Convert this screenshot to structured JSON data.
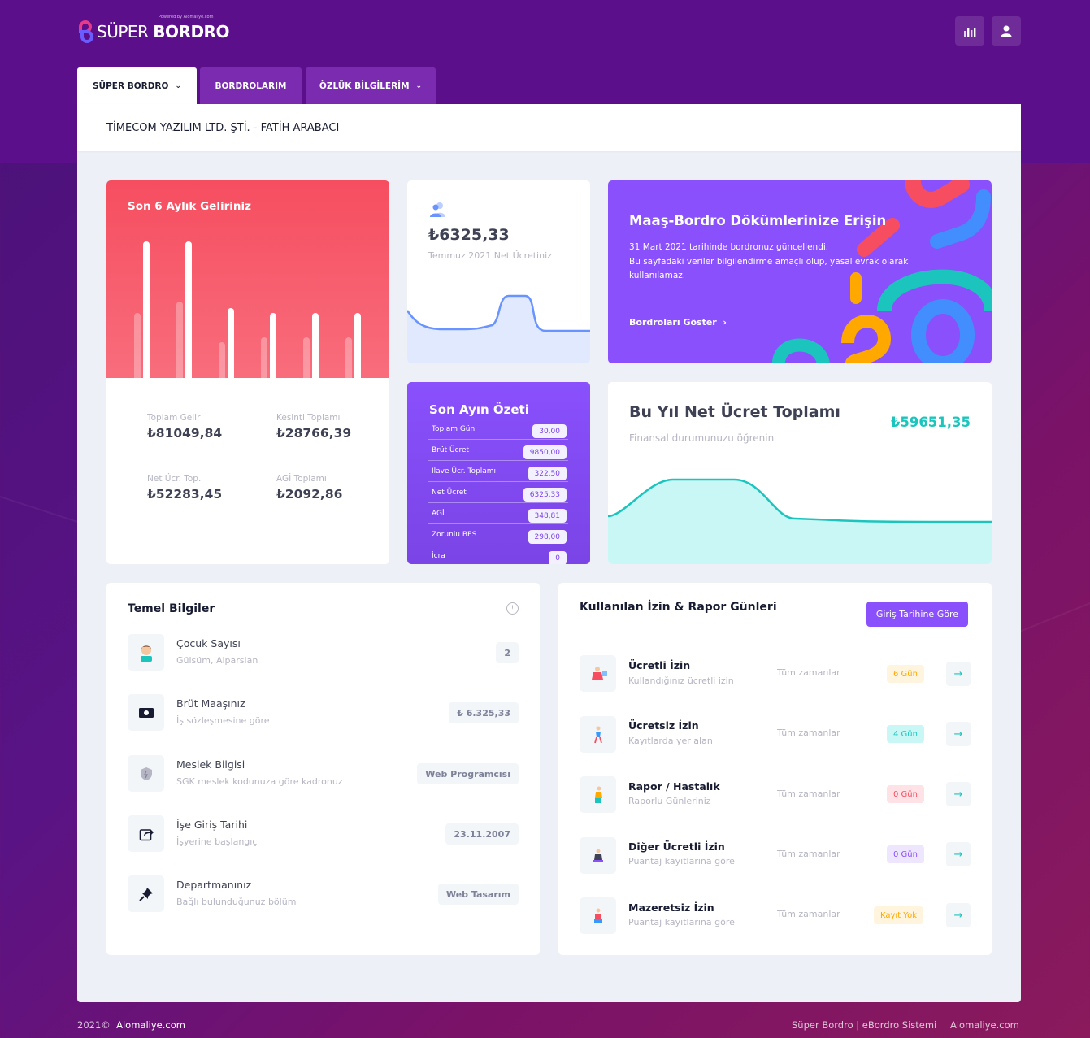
{
  "brand": {
    "name_prefix": "SÜPER",
    "name_bold": "BORDRO",
    "powered": "Powered by Alomaliye.com"
  },
  "header": {
    "stats_icon": "bar-chart-icon",
    "user_icon": "user-icon"
  },
  "tabs": [
    {
      "label": "SÜPER BORDRO"
    },
    {
      "label": "BORDROLARIM"
    },
    {
      "label": "ÖZLÜK BİLGİLERİM"
    }
  ],
  "subheader": {
    "title": "TİMECOM YAZILIM LTD. ŞTİ. - FATİH ARABACI"
  },
  "income": {
    "title": "Son 6 Aylık Geliriniz",
    "stats": [
      {
        "label": "Toplam Gelir",
        "value": "₺81049,84"
      },
      {
        "label": "Kesinti Toplamı",
        "value": "₺28766,39"
      },
      {
        "label": "Net Ücr. Top.",
        "value": "₺52283,45"
      },
      {
        "label": "AGİ Toplamı",
        "value": "₺2092,86"
      }
    ]
  },
  "net_card": {
    "value": "₺6325,33",
    "subtitle": "Temmuz 2021 Net Ücretiniz",
    "icon": "users-icon"
  },
  "banner": {
    "title": "Maaş-Bordro Dökümlerinize Erişin",
    "line1": "31 Mart 2021 tarihinde bordronuz güncellendi.",
    "line2": "Bu sayfadaki veriler bilgilendirme amaçlı olup, yasal evrak olarak kullanılamaz.",
    "link": "Bordroları Göster"
  },
  "summary": {
    "title": "Son Ayın Özeti",
    "rows": [
      {
        "label": "Toplam Gün",
        "value": "30,00"
      },
      {
        "label": "Brüt Ücret",
        "value": "9850,00"
      },
      {
        "label": "İlave Ücr. Toplamı",
        "value": "322,50"
      },
      {
        "label": "Net Ücret",
        "value": "6325,33"
      },
      {
        "label": "AGİ",
        "value": "348,81"
      },
      {
        "label": "Zorunlu BES",
        "value": "298,00"
      },
      {
        "label": "İcra",
        "value": "0"
      }
    ]
  },
  "yearly": {
    "title": "Bu Yıl Net Ücret Toplamı",
    "subtitle": "Finansal durumunuzu öğrenin",
    "value": "₺59651,35"
  },
  "temel": {
    "title": "Temel Bilgiler",
    "items": [
      {
        "title": "Çocuk Sayısı",
        "sub": "Gülsüm, Alparslan",
        "badge": "2",
        "icon": "child-avatar-icon"
      },
      {
        "title": "Brüt Maaşınız",
        "sub": "İş sözleşmesine göre",
        "badge": "₺ 6.325,33",
        "icon": "money-icon"
      },
      {
        "title": "Meslek Bilgisi",
        "sub": "SGK meslek kodunuza göre kadronuz",
        "badge": "Web Programcısı",
        "icon": "shield-icon"
      },
      {
        "title": "İşe Giriş Tarihi",
        "sub": "İşyerine başlangıç",
        "badge": "23.11.2007",
        "icon": "share-arrow-icon"
      },
      {
        "title": "Departmanınız",
        "sub": "Bağlı bulunduğunuz bölüm",
        "badge": "Web Tasarım",
        "icon": "pin-icon"
      }
    ]
  },
  "izin": {
    "title": "Kullanılan İzin & Rapor Günleri",
    "button": "Giriş Tarihine Göre",
    "items": [
      {
        "title": "Ücretli İzin",
        "sub": "Kullandığınız ücretli izin",
        "when": "Tüm zamanlar",
        "badge": "6 Gün",
        "color": "#ffa800",
        "bg": "#fff4de"
      },
      {
        "title": "Ücretsiz İzin",
        "sub": "Kayıtlarda yer alan",
        "when": "Tüm zamanlar",
        "badge": "4 Gün",
        "color": "#1bc5bd",
        "bg": "#c9f7f5"
      },
      {
        "title": "Rapor / Hastalık",
        "sub": "Raporlu Günleriniz",
        "when": "Tüm zamanlar",
        "badge": "0 Gün",
        "color": "#f64e60",
        "bg": "#ffe2e5"
      },
      {
        "title": "Diğer Ücretli İzin",
        "sub": "Puantaj kayıtlarına göre",
        "when": "Tüm zamanlar",
        "badge": "0 Gün",
        "color": "#8950fc",
        "bg": "#eee5ff"
      },
      {
        "title": "Mazeretsiz İzin",
        "sub": "Puantaj kayıtlarına göre",
        "when": "Tüm zamanlar",
        "badge": "Kayıt Yok",
        "color": "#ffa800",
        "bg": "#fff4de"
      }
    ]
  },
  "footer": {
    "year": "2021©",
    "site": "Alomaliye.com",
    "system": "Süper Bordro | eBordro Sistemi",
    "site2": "Alomaliye.com"
  }
}
